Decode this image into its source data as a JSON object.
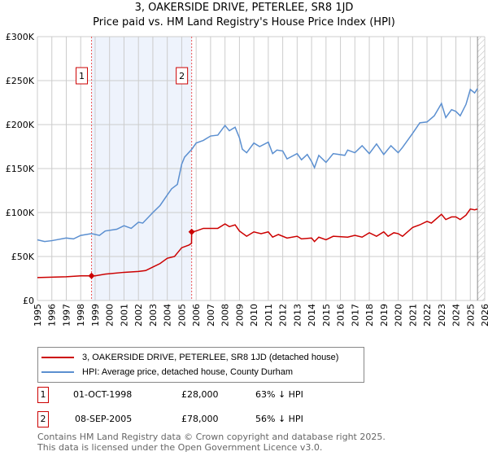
{
  "title": "3, OAKERSIDE DRIVE, PETERLEE, SR8 1JD",
  "subtitle": "Price paid vs. HM Land Registry's House Price Index (HPI)",
  "chart_data": {
    "type": "line",
    "xlim": [
      1995,
      2026
    ],
    "ylim": [
      0,
      300000
    ],
    "yticks": [
      {
        "v": 0,
        "label": "£0"
      },
      {
        "v": 50000,
        "label": "£50K"
      },
      {
        "v": 100000,
        "label": "£100K"
      },
      {
        "v": 150000,
        "label": "£150K"
      },
      {
        "v": 200000,
        "label": "£200K"
      },
      {
        "v": 250000,
        "label": "£250K"
      },
      {
        "v": 300000,
        "label": "£300K"
      }
    ],
    "xticks": [
      "1995",
      "1996",
      "1997",
      "1998",
      "1999",
      "2000",
      "2001",
      "2002",
      "2003",
      "2004",
      "2005",
      "2006",
      "2007",
      "2008",
      "2009",
      "2010",
      "2011",
      "2012",
      "2013",
      "2014",
      "2015",
      "2016",
      "2017",
      "2018",
      "2019",
      "2020",
      "2021",
      "2022",
      "2023",
      "2024",
      "2025",
      "2026"
    ],
    "grid": true,
    "shaded_range": [
      1998.75,
      2005.69
    ],
    "forecast_hatch_from": 2025.5,
    "colors": {
      "property": "#cc0000",
      "hpi": "#5b8fd0",
      "shade": "#eef3fc"
    },
    "series": [
      {
        "name": "3, OAKERSIDE DRIVE, PETERLEE, SR8 1JD (detached house)",
        "color": "#cc0000",
        "points": [
          [
            1995,
            26
          ],
          [
            1997,
            27
          ],
          [
            1998,
            28
          ],
          [
            1998.75,
            28
          ],
          [
            1999,
            28
          ],
          [
            1999.7,
            30
          ],
          [
            2001,
            32
          ],
          [
            2002,
            33
          ],
          [
            2002.5,
            34
          ],
          [
            2003,
            38
          ],
          [
            2003.5,
            42
          ],
          [
            2004,
            48
          ],
          [
            2004.5,
            50
          ],
          [
            2005,
            60
          ],
          [
            2005.5,
            63
          ],
          [
            2005.68,
            65
          ],
          [
            2005.69,
            78
          ],
          [
            2006,
            79
          ],
          [
            2006.5,
            82
          ],
          [
            2007.5,
            82
          ],
          [
            2008,
            87
          ],
          [
            2008.3,
            84
          ],
          [
            2008.7,
            86
          ],
          [
            2009,
            79
          ],
          [
            2009.5,
            73
          ],
          [
            2010,
            78
          ],
          [
            2010.5,
            76
          ],
          [
            2011,
            78
          ],
          [
            2011.3,
            72
          ],
          [
            2011.7,
            75
          ],
          [
            2012.3,
            71
          ],
          [
            2013,
            73
          ],
          [
            2013.3,
            70
          ],
          [
            2014,
            71
          ],
          [
            2014.2,
            67
          ],
          [
            2014.5,
            72
          ],
          [
            2015,
            69
          ],
          [
            2015.5,
            73
          ],
          [
            2016.5,
            72
          ],
          [
            2017,
            74
          ],
          [
            2017.5,
            72
          ],
          [
            2018,
            77
          ],
          [
            2018.5,
            73
          ],
          [
            2019,
            78
          ],
          [
            2019.3,
            73
          ],
          [
            2019.7,
            77
          ],
          [
            2020,
            76
          ],
          [
            2020.3,
            73
          ],
          [
            2021,
            83
          ],
          [
            2021.5,
            86
          ],
          [
            2022,
            90
          ],
          [
            2022.3,
            88
          ],
          [
            2023,
            98
          ],
          [
            2023.3,
            92
          ],
          [
            2023.7,
            95
          ],
          [
            2024,
            95
          ],
          [
            2024.3,
            92
          ],
          [
            2024.7,
            97
          ],
          [
            2025,
            104
          ],
          [
            2025.3,
            103
          ],
          [
            2025.5,
            104
          ]
        ]
      },
      {
        "name": "HPI: Average price, detached house, County Durham",
        "color": "#5b8fd0",
        "points": [
          [
            1995,
            69
          ],
          [
            1995.5,
            67
          ],
          [
            1996,
            68
          ],
          [
            1997,
            71
          ],
          [
            1997.5,
            70
          ],
          [
            1998,
            74
          ],
          [
            1998.75,
            76
          ],
          [
            1999.3,
            74
          ],
          [
            1999.7,
            79
          ],
          [
            2000.5,
            81
          ],
          [
            2001,
            85
          ],
          [
            2001.5,
            82
          ],
          [
            2002,
            89
          ],
          [
            2002.3,
            88
          ],
          [
            2003,
            100
          ],
          [
            2003.5,
            108
          ],
          [
            2004,
            120
          ],
          [
            2004.3,
            127
          ],
          [
            2004.7,
            132
          ],
          [
            2005,
            155
          ],
          [
            2005.2,
            163
          ],
          [
            2005.7,
            172
          ],
          [
            2006,
            179
          ],
          [
            2006.5,
            182
          ],
          [
            2007,
            187
          ],
          [
            2007.5,
            188
          ],
          [
            2008,
            199
          ],
          [
            2008.3,
            193
          ],
          [
            2008.7,
            197
          ],
          [
            2009,
            185
          ],
          [
            2009.2,
            172
          ],
          [
            2009.5,
            168
          ],
          [
            2010,
            179
          ],
          [
            2010.4,
            175
          ],
          [
            2011,
            180
          ],
          [
            2011.3,
            167
          ],
          [
            2011.6,
            171
          ],
          [
            2012,
            170
          ],
          [
            2012.3,
            161
          ],
          [
            2013,
            167
          ],
          [
            2013.3,
            160
          ],
          [
            2013.7,
            166
          ],
          [
            2014,
            158
          ],
          [
            2014.2,
            151
          ],
          [
            2014.5,
            165
          ],
          [
            2015,
            157
          ],
          [
            2015.5,
            167
          ],
          [
            2016.3,
            165
          ],
          [
            2016.5,
            171
          ],
          [
            2017,
            168
          ],
          [
            2017.5,
            176
          ],
          [
            2018,
            167
          ],
          [
            2018.5,
            178
          ],
          [
            2019,
            166
          ],
          [
            2019.5,
            176
          ],
          [
            2020,
            168
          ],
          [
            2020.3,
            174
          ],
          [
            2021,
            190
          ],
          [
            2021.5,
            202
          ],
          [
            2022,
            203
          ],
          [
            2022.5,
            210
          ],
          [
            2023,
            224
          ],
          [
            2023.3,
            208
          ],
          [
            2023.7,
            217
          ],
          [
            2024,
            215
          ],
          [
            2024.3,
            210
          ],
          [
            2024.7,
            223
          ],
          [
            2025,
            240
          ],
          [
            2025.3,
            236
          ],
          [
            2025.5,
            241
          ]
        ]
      }
    ],
    "annotations": [
      {
        "label": "1",
        "x": 1998.75,
        "y": 28000
      },
      {
        "label": "2",
        "x": 2005.69,
        "y": 78000
      }
    ]
  },
  "legend": {
    "property": "3, OAKERSIDE DRIVE, PETERLEE, SR8 1JD (detached house)",
    "hpi": "HPI: Average price, detached house, County Durham"
  },
  "sales": [
    {
      "num": "1",
      "date": "01-OCT-1998",
      "price": "£28,000",
      "hpi": "63% ↓ HPI"
    },
    {
      "num": "2",
      "date": "08-SEP-2005",
      "price": "£78,000",
      "hpi": "56% ↓ HPI"
    }
  ],
  "footer": {
    "line1": "Contains HM Land Registry data © Crown copyright and database right 2025.",
    "line2": "This data is licensed under the Open Government Licence v3.0."
  }
}
